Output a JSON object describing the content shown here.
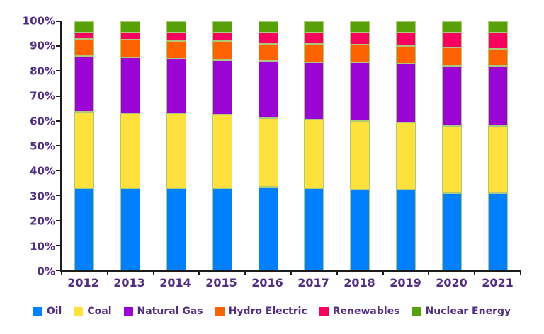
{
  "chart_data": {
    "type": "bar",
    "stacked": true,
    "stack_mode": "percent",
    "title": "",
    "categories": [
      "2012",
      "2013",
      "2014",
      "2015",
      "2016",
      "2017",
      "2018",
      "2019",
      "2020",
      "2021"
    ],
    "series": [
      {
        "name": "Oil",
        "color": "#0080FE",
        "values": [
          33,
          33,
          33,
          33,
          33.5,
          33,
          32.5,
          32.5,
          31,
          31
        ]
      },
      {
        "name": "Coal",
        "color": "#FFE13E",
        "values": [
          30.5,
          30,
          30,
          29.5,
          27.5,
          27.5,
          27.5,
          27,
          27,
          27
        ]
      },
      {
        "name": "Natural Gas",
        "color": "#9A05D6",
        "values": [
          22.5,
          22.5,
          22,
          22,
          23,
          23,
          23.5,
          23.5,
          24,
          24
        ]
      },
      {
        "name": "Hydro Electric",
        "color": "#FF6300",
        "values": [
          7,
          7,
          7,
          7.5,
          7,
          7.5,
          7,
          7,
          7.5,
          7
        ]
      },
      {
        "name": "Renewables",
        "color": "#F8015E",
        "values": [
          2.5,
          3,
          3.5,
          3.5,
          4.5,
          4.5,
          5,
          5.5,
          6,
          6.5
        ]
      },
      {
        "name": "Nuclear Energy",
        "color": "#58A008",
        "values": [
          4.5,
          4.5,
          4.5,
          4.5,
          4.5,
          4.5,
          4.5,
          4.5,
          4.5,
          4.5
        ]
      }
    ],
    "y_ticks": [
      "0%",
      "10%",
      "20%",
      "30%",
      "40%",
      "50%",
      "60%",
      "70%",
      "80%",
      "90%",
      "100%"
    ],
    "ylim": [
      0,
      100
    ],
    "xlabel": "",
    "ylabel": "",
    "grid": false,
    "legend_position": "bottom",
    "colors": {
      "text": "#512E82",
      "axis": "#1c1c1c",
      "segment_border": "#ADC878",
      "background": "#ffffff"
    }
  }
}
